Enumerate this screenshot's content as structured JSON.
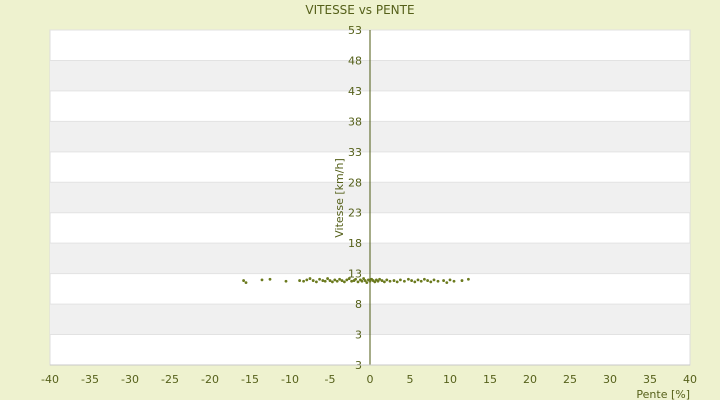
{
  "chart_data": {
    "type": "scatter",
    "title": "VITESSE vs PENTE",
    "xlabel": "Pente [%]",
    "ylabel": "Vitesse [km/h]",
    "xlim": [
      -40,
      40
    ],
    "ylim": [
      3,
      53
    ],
    "x_ticks": [
      "-40",
      "-35",
      "-30",
      "-25",
      "-20",
      "-15",
      "-10",
      "-5",
      "0",
      "5",
      "10",
      "15",
      "20",
      "25",
      "30",
      "35",
      "40"
    ],
    "y_ticks": [
      "53",
      "48",
      "43",
      "38",
      "33",
      "28",
      "23",
      "18",
      "13",
      "8",
      "3",
      "3"
    ],
    "grid": "horizontal alternating bands",
    "colors": {
      "background": "#eef2cf",
      "band": "#f0f0f0",
      "plot": "#ffffff",
      "marker": "#6b7a1e",
      "axis": "#4d5a12"
    },
    "points": [
      [
        -15.8,
        15.6
      ],
      [
        -15.5,
        15.3
      ],
      [
        -13.5,
        15.7
      ],
      [
        -12.5,
        15.8
      ],
      [
        -10.5,
        15.5
      ],
      [
        -8.8,
        15.6
      ],
      [
        -8.3,
        15.5
      ],
      [
        -7.9,
        15.7
      ],
      [
        -7.5,
        15.9
      ],
      [
        -7.1,
        15.6
      ],
      [
        -6.7,
        15.4
      ],
      [
        -6.3,
        15.8
      ],
      [
        -5.9,
        15.6
      ],
      [
        -5.6,
        15.5
      ],
      [
        -5.3,
        15.9
      ],
      [
        -5.0,
        15.6
      ],
      [
        -4.7,
        15.4
      ],
      [
        -4.4,
        15.7
      ],
      [
        -4.1,
        15.5
      ],
      [
        -3.8,
        15.8
      ],
      [
        -3.5,
        15.6
      ],
      [
        -3.2,
        15.4
      ],
      [
        -2.9,
        15.7
      ],
      [
        -2.6,
        15.9
      ],
      [
        -2.3,
        15.5
      ],
      [
        -2.0,
        15.6
      ],
      [
        -1.8,
        15.8
      ],
      [
        -1.5,
        15.4
      ],
      [
        -1.2,
        15.7
      ],
      [
        -1.0,
        15.5
      ],
      [
        -0.8,
        15.9
      ],
      [
        -0.6,
        15.6
      ],
      [
        -0.4,
        15.3
      ],
      [
        -0.2,
        15.7
      ],
      [
        0.0,
        15.5
      ],
      [
        0.2,
        15.8
      ],
      [
        0.4,
        15.6
      ],
      [
        0.6,
        15.4
      ],
      [
        0.8,
        15.7
      ],
      [
        1.0,
        15.5
      ],
      [
        1.2,
        15.8
      ],
      [
        1.5,
        15.6
      ],
      [
        1.8,
        15.4
      ],
      [
        2.1,
        15.7
      ],
      [
        2.5,
        15.5
      ],
      [
        3.0,
        15.6
      ],
      [
        3.4,
        15.4
      ],
      [
        3.8,
        15.7
      ],
      [
        4.3,
        15.5
      ],
      [
        4.8,
        15.8
      ],
      [
        5.2,
        15.6
      ],
      [
        5.6,
        15.4
      ],
      [
        6.0,
        15.7
      ],
      [
        6.4,
        15.5
      ],
      [
        6.8,
        15.8
      ],
      [
        7.2,
        15.6
      ],
      [
        7.6,
        15.4
      ],
      [
        8.0,
        15.7
      ],
      [
        8.5,
        15.5
      ],
      [
        9.2,
        15.6
      ],
      [
        9.6,
        15.3
      ],
      [
        10.0,
        15.7
      ],
      [
        10.5,
        15.5
      ],
      [
        11.5,
        15.6
      ],
      [
        12.3,
        15.8
      ]
    ]
  }
}
